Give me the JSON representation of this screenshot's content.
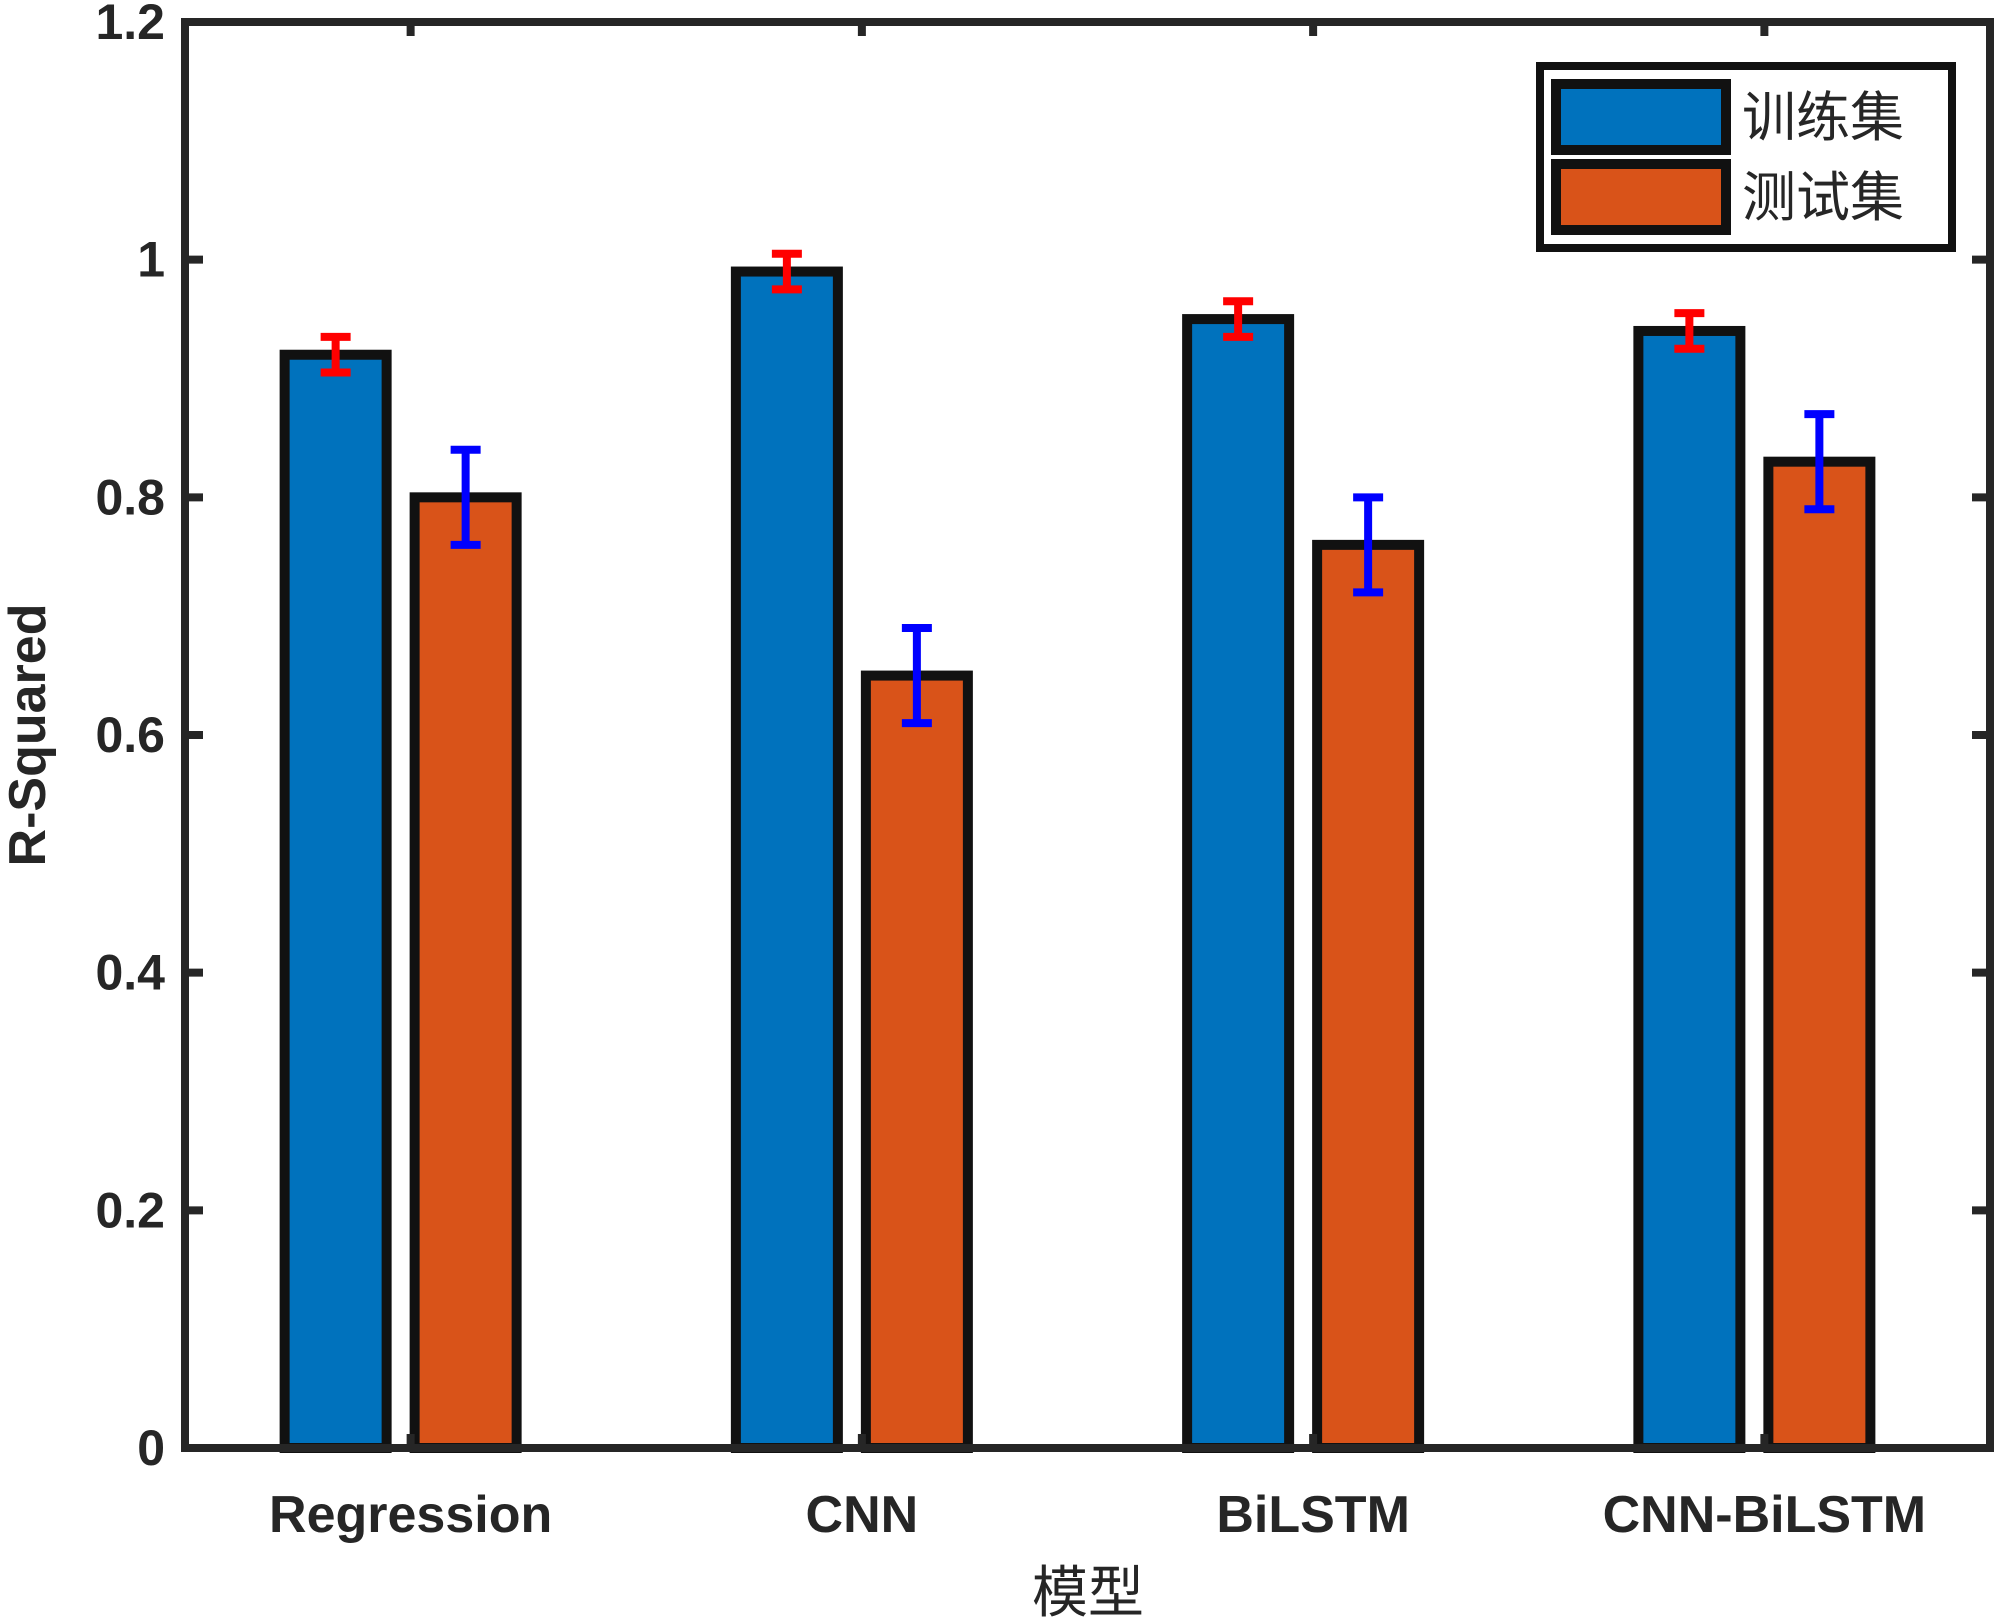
{
  "chart_data": {
    "type": "bar",
    "title": "",
    "xlabel": "模型",
    "ylabel": "R-Squared",
    "ylim": [
      0,
      1.2
    ],
    "yticks": [
      0,
      0.2,
      0.4,
      0.6,
      0.8,
      1,
      1.2
    ],
    "ytick_labels": [
      "0",
      "0.2",
      "0.4",
      "0.6",
      "0.8",
      "1",
      "1.2"
    ],
    "categories": [
      "Regression",
      "CNN",
      "BiLSTM",
      "CNN-BiLSTM"
    ],
    "series": [
      {
        "name": "训练集",
        "color": "#0072BD",
        "error_color": "#FF0000",
        "values": [
          0.92,
          0.99,
          0.95,
          0.94
        ],
        "errors": [
          0.015,
          0.015,
          0.015,
          0.015
        ]
      },
      {
        "name": "测试集",
        "color": "#D95319",
        "error_color": "#0000FF",
        "values": [
          0.8,
          0.65,
          0.76,
          0.83
        ],
        "errors": [
          0.04,
          0.04,
          0.04,
          0.04
        ]
      }
    ],
    "legend_position": "top-right",
    "grid": false
  }
}
